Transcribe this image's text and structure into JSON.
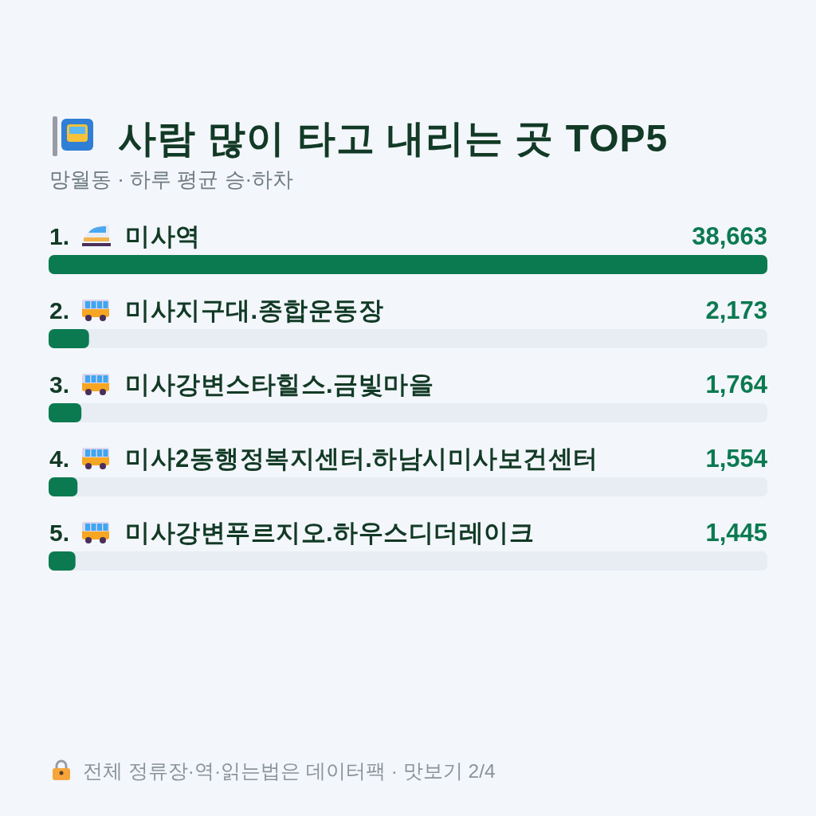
{
  "chart_data": {
    "type": "bar",
    "orientation": "horizontal",
    "title": "사람 많이 타고 내리는 곳 TOP5",
    "subtitle": "망월동 · 하루 평균 승·하차",
    "categories": [
      "1. 미사역",
      "2. 미사지구대.종합운동장",
      "3. 미사강변스타힐스.금빛마을",
      "4. 미사2동행정복지센터.하남시미사보건센터",
      "5. 미사강변푸르지오.하우스디더레이크"
    ],
    "values": [
      38663,
      2173,
      1764,
      1554,
      1445
    ],
    "value_labels": [
      "38,663",
      "2,173",
      "1,764",
      "1,554",
      "1,445"
    ],
    "color": "#0b7a51",
    "annotations": [
      "전체 정류장·역·읽는법은 데이터팩 · 맛보기 2/4"
    ]
  }
}
